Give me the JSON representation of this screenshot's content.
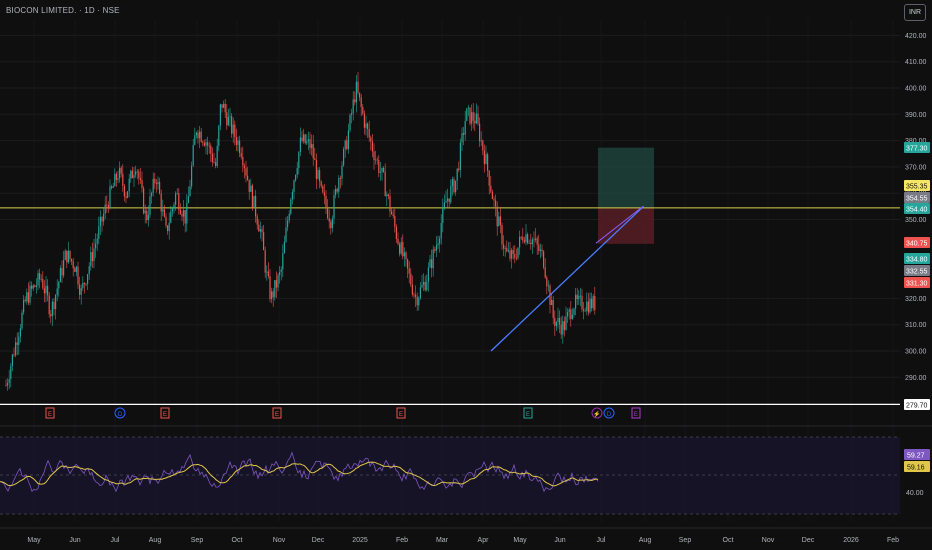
{
  "header": {
    "symbol_title": "BIOCON LIMITED. · 1D · NSE",
    "currency_button": "INR"
  },
  "colors": {
    "background": "#0f0f0f",
    "up_candle": "#26a69a",
    "down_candle": "#ef5350",
    "trendline": "#4a7dff",
    "target_zone": "#1f4a40",
    "stop_zone": "#5a1e26",
    "entry_line": "#d6d24a",
    "rsi_line": "#7e57c2",
    "rsi_ma": "#e0c64a"
  },
  "chart_data": {
    "type": "candlestick",
    "y_axis": {
      "ticks": [
        290,
        300,
        310,
        320,
        350,
        360,
        370,
        380,
        390,
        400,
        410,
        420
      ],
      "range": [
        277,
        425
      ]
    },
    "x_axis": {
      "labels": [
        "May",
        "Jun",
        "Jul",
        "Aug",
        "Sep",
        "Oct",
        "Nov",
        "Dec",
        "2025",
        "Feb",
        "Mar",
        "Apr",
        "May",
        "Jun",
        "Jul",
        "Aug",
        "Sep",
        "Oct",
        "Nov",
        "Dec",
        "2026",
        "Feb"
      ]
    },
    "price_labels": [
      {
        "value": "377.30",
        "color": "#26a69a"
      },
      {
        "value": "355.35",
        "color": "#f5e663"
      },
      {
        "value": "354.55",
        "color": "#787b86"
      },
      {
        "value": "354.40",
        "color": "#26a69a"
      },
      {
        "value": "340.75",
        "color": "#ef5350"
      },
      {
        "value": "334.80",
        "color": "#26a69a"
      },
      {
        "value": "332.55",
        "color": "#787b86"
      },
      {
        "value": "331.30",
        "color": "#ef5350"
      },
      {
        "value": "279.70",
        "color": "#ffffff"
      }
    ],
    "close_path": [
      [
        0,
        287
      ],
      [
        8,
        320
      ],
      [
        14,
        328
      ],
      [
        18,
        315
      ],
      [
        24,
        337
      ],
      [
        28,
        332
      ],
      [
        30,
        322
      ],
      [
        34,
        335
      ],
      [
        40,
        355
      ],
      [
        45,
        368
      ],
      [
        48,
        360
      ],
      [
        52,
        372
      ],
      [
        56,
        350
      ],
      [
        60,
        367
      ],
      [
        64,
        345
      ],
      [
        68,
        360
      ],
      [
        72,
        350
      ],
      [
        76,
        385
      ],
      [
        80,
        380
      ],
      [
        84,
        370
      ],
      [
        86,
        395
      ],
      [
        90,
        385
      ],
      [
        94,
        377
      ],
      [
        98,
        360
      ],
      [
        102,
        345
      ],
      [
        104,
        330
      ],
      [
        106,
        320
      ],
      [
        110,
        330
      ],
      [
        114,
        360
      ],
      [
        118,
        380
      ],
      [
        122,
        378
      ],
      [
        126,
        360
      ],
      [
        130,
        350
      ],
      [
        133,
        366
      ],
      [
        136,
        378
      ],
      [
        140,
        400
      ],
      [
        144,
        385
      ],
      [
        148,
        373
      ],
      [
        151,
        365
      ],
      [
        156,
        345
      ],
      [
        160,
        332
      ],
      [
        164,
        320
      ],
      [
        168,
        327
      ],
      [
        172,
        340
      ],
      [
        176,
        357
      ],
      [
        180,
        365
      ],
      [
        184,
        390
      ],
      [
        188,
        388
      ],
      [
        192,
        372
      ],
      [
        196,
        352
      ],
      [
        200,
        337
      ],
      [
        203,
        335
      ],
      [
        207,
        345
      ],
      [
        211,
        342
      ],
      [
        215,
        335
      ],
      [
        219,
        312
      ],
      [
        223,
        309
      ],
      [
        227,
        318
      ]
    ],
    "annotations": {
      "ascending_trendline": [
        [
          146,
          300
        ],
        [
          179,
          355
        ]
      ],
      "long_position": {
        "entry": 354.4,
        "target": 377.3,
        "stop": 340.75
      },
      "support_line": 279.7
    },
    "event_markers": [
      "E",
      "D",
      "E",
      "E",
      "E",
      "E",
      "D",
      "E"
    ]
  },
  "rsi": {
    "ticks": [
      "40.00"
    ],
    "labels": [
      {
        "value": "59.27",
        "color": "#7e57c2"
      },
      {
        "value": "59.16",
        "color": "#e0c64a"
      }
    ]
  }
}
